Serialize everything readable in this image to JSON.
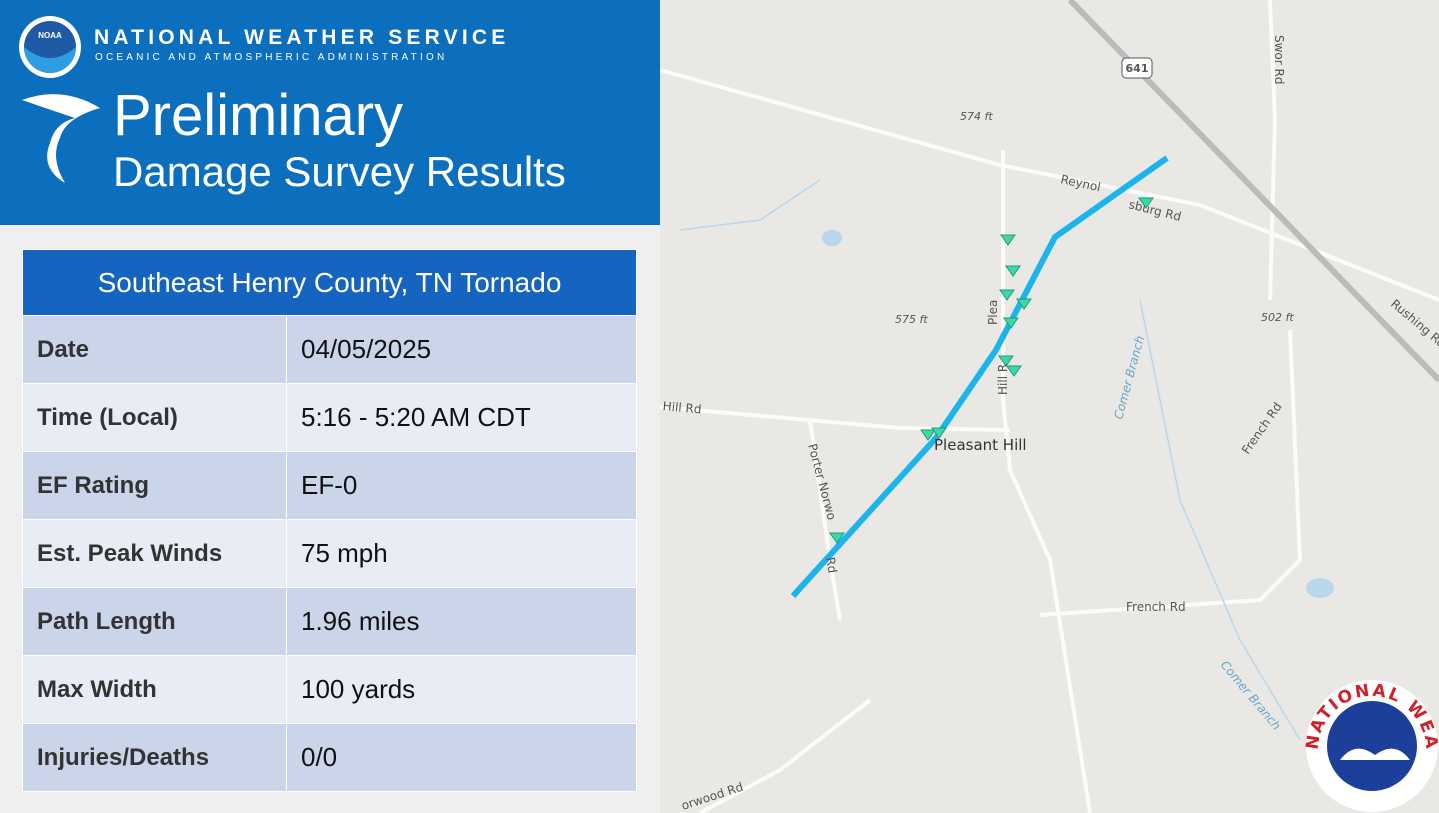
{
  "header": {
    "organization": "NATIONAL WEATHER SERVICE",
    "subtitle": "OCEANIC AND ATMOSPHERIC ADMINISTRATION",
    "noaa_logo": "NOAA",
    "title": "Preliminary",
    "title_line2": "Damage Survey Results"
  },
  "table": {
    "title": "Southeast Henry County, TN Tornado",
    "rows": [
      [
        "Date",
        "04/05/2025"
      ],
      [
        "Time (Local)",
        "5:16 - 5:20 AM CDT"
      ],
      [
        "EF Rating",
        "EF-0"
      ],
      [
        "Est. Peak Winds",
        "75 mph"
      ],
      [
        "Path Length",
        "1.96 miles"
      ],
      [
        "Max Width",
        "100 yards"
      ],
      [
        "Injuries/Deaths",
        "0/0"
      ]
    ]
  },
  "map": {
    "labels": [
      "641",
      "Swor Rd",
      "574 ft",
      "Reynol",
      "sburg Rd",
      "575 ft",
      "502 ft",
      "ant Hill Rd",
      "Pleasant Hill",
      "Plea",
      "Hill R",
      "Porter Norwo",
      "Rd",
      "Comer Branch",
      "French Rd",
      "French Rd",
      "Rushing Ro",
      "orwood Rd",
      "Comer Branch",
      "ch"
    ],
    "logo_text": "NATIONAL WEATHER SERVICE"
  }
}
